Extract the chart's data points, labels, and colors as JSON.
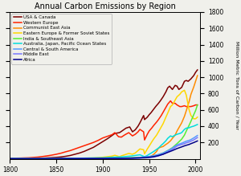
{
  "title": "Annual Carbon Emissions by Region",
  "ylabel": "Million Metric Tons of Carbon / Year",
  "xlim": [
    1800,
    2005
  ],
  "ylim": [
    0,
    1800
  ],
  "yticks": [
    200,
    400,
    600,
    800,
    1000,
    1200,
    1400,
    1600,
    1800
  ],
  "xticks": [
    1800,
    1850,
    1900,
    1950,
    2000
  ],
  "background_color": "#f0f0eb",
  "series": [
    {
      "label": "USA & Canada",
      "color": "#7B0000",
      "linewidth": 1.1,
      "years": [
        1800,
        1805,
        1810,
        1815,
        1820,
        1825,
        1830,
        1835,
        1840,
        1845,
        1850,
        1855,
        1860,
        1865,
        1870,
        1875,
        1880,
        1885,
        1890,
        1895,
        1900,
        1905,
        1910,
        1913,
        1918,
        1920,
        1925,
        1929,
        1932,
        1935,
        1938,
        1940,
        1944,
        1945,
        1948,
        1950,
        1952,
        1955,
        1957,
        1960,
        1962,
        1965,
        1968,
        1970,
        1972,
        1975,
        1978,
        1980,
        1982,
        1985,
        1988,
        1990,
        1992,
        1995,
        1998,
        2000,
        2002
      ],
      "values": [
        2,
        2.5,
        3,
        3.5,
        4,
        5,
        6,
        8,
        11,
        14,
        17,
        22,
        30,
        40,
        55,
        70,
        90,
        115,
        140,
        175,
        210,
        245,
        285,
        310,
        320,
        335,
        375,
        390,
        330,
        355,
        400,
        440,
        530,
        480,
        510,
        540,
        565,
        610,
        640,
        680,
        710,
        760,
        820,
        870,
        890,
        850,
        900,
        890,
        850,
        875,
        950,
        960,
        950,
        980,
        1020,
        1060,
        1090
      ]
    },
    {
      "label": "Western Europe",
      "color": "#FF2200",
      "linewidth": 1.1,
      "years": [
        1800,
        1805,
        1810,
        1815,
        1820,
        1825,
        1830,
        1835,
        1840,
        1845,
        1850,
        1855,
        1860,
        1865,
        1870,
        1875,
        1880,
        1885,
        1890,
        1895,
        1900,
        1905,
        1910,
        1913,
        1917,
        1920,
        1924,
        1928,
        1932,
        1935,
        1938,
        1940,
        1944,
        1945,
        1948,
        1950,
        1953,
        1955,
        1958,
        1960,
        1963,
        1965,
        1968,
        1970,
        1973,
        1975,
        1978,
        1980,
        1983,
        1985,
        1988,
        1990,
        1993,
        1995,
        1998,
        2000,
        2002
      ],
      "values": [
        6,
        7,
        8,
        10,
        12,
        16,
        20,
        27,
        35,
        44,
        55,
        68,
        85,
        100,
        120,
        140,
        160,
        180,
        200,
        225,
        255,
        275,
        295,
        320,
        270,
        265,
        295,
        320,
        280,
        300,
        330,
        360,
        330,
        230,
        300,
        340,
        380,
        410,
        450,
        480,
        530,
        570,
        630,
        670,
        710,
        680,
        680,
        660,
        640,
        640,
        650,
        640,
        640,
        640,
        650,
        660,
        660
      ]
    },
    {
      "label": "Communist East Asia",
      "color": "#FF8C00",
      "linewidth": 1.1,
      "years": [
        1800,
        1850,
        1900,
        1920,
        1930,
        1938,
        1940,
        1945,
        1948,
        1950,
        1952,
        1955,
        1958,
        1960,
        1962,
        1965,
        1968,
        1970,
        1973,
        1975,
        1978,
        1980,
        1983,
        1985,
        1988,
        1990,
        1993,
        1995,
        1998,
        2000,
        2002
      ],
      "values": [
        1,
        2,
        4,
        7,
        9,
        14,
        13,
        10,
        12,
        18,
        30,
        55,
        90,
        130,
        140,
        150,
        175,
        190,
        220,
        250,
        290,
        340,
        400,
        440,
        520,
        590,
        700,
        790,
        880,
        950,
        1020
      ]
    },
    {
      "label": "Eastern Europe & Former Soviet States",
      "color": "#FFD700",
      "linewidth": 1.1,
      "years": [
        1800,
        1850,
        1880,
        1890,
        1900,
        1910,
        1913,
        1918,
        1920,
        1924,
        1928,
        1932,
        1935,
        1938,
        1940,
        1944,
        1945,
        1948,
        1950,
        1953,
        1955,
        1958,
        1960,
        1963,
        1965,
        1968,
        1970,
        1973,
        1975,
        1978,
        1980,
        1983,
        1985,
        1988,
        1990,
        1993,
        1995,
        1998,
        2000,
        2002
      ],
      "values": [
        2,
        3,
        7,
        10,
        18,
        32,
        42,
        25,
        35,
        50,
        65,
        55,
        70,
        100,
        120,
        110,
        60,
        120,
        155,
        210,
        245,
        290,
        330,
        390,
        430,
        510,
        560,
        640,
        660,
        720,
        760,
        790,
        820,
        840,
        780,
        600,
        530,
        490,
        490,
        510
      ]
    },
    {
      "label": "India & Southeast Asia",
      "color": "#55EE33",
      "linewidth": 1.1,
      "years": [
        1800,
        1850,
        1900,
        1920,
        1930,
        1940,
        1950,
        1955,
        1960,
        1965,
        1970,
        1975,
        1980,
        1985,
        1988,
        1990,
        1993,
        1995,
        1998,
        2000,
        2002
      ],
      "values": [
        2,
        3,
        6,
        9,
        11,
        16,
        25,
        35,
        50,
        70,
        100,
        135,
        185,
        240,
        290,
        340,
        410,
        460,
        540,
        590,
        660
      ]
    },
    {
      "label": "Australia, Japan, Pacific Ocean States",
      "color": "#00DDDD",
      "linewidth": 1.1,
      "years": [
        1800,
        1850,
        1900,
        1910,
        1920,
        1930,
        1938,
        1940,
        1945,
        1948,
        1950,
        1953,
        1955,
        1958,
        1960,
        1963,
        1965,
        1968,
        1970,
        1973,
        1975,
        1978,
        1980,
        1983,
        1985,
        1988,
        1990,
        1993,
        1995,
        1998,
        2000,
        2002
      ],
      "values": [
        1,
        2,
        12,
        18,
        22,
        32,
        45,
        48,
        25,
        40,
        55,
        75,
        90,
        115,
        130,
        165,
        185,
        220,
        250,
        280,
        270,
        290,
        300,
        310,
        320,
        360,
        375,
        380,
        390,
        400,
        410,
        420
      ]
    },
    {
      "label": "Central & South America",
      "color": "#5599FF",
      "linewidth": 1.1,
      "years": [
        1800,
        1850,
        1900,
        1920,
        1930,
        1940,
        1950,
        1955,
        1960,
        1965,
        1970,
        1975,
        1980,
        1985,
        1988,
        1990,
        1993,
        1995,
        1998,
        2000,
        2002
      ],
      "values": [
        1,
        2,
        4,
        7,
        10,
        16,
        28,
        38,
        52,
        70,
        98,
        130,
        170,
        190,
        205,
        215,
        225,
        235,
        255,
        270,
        285
      ]
    },
    {
      "label": "Middle East",
      "color": "#7777FF",
      "linewidth": 1.1,
      "years": [
        1800,
        1850,
        1900,
        1920,
        1930,
        1940,
        1950,
        1955,
        1960,
        1965,
        1970,
        1975,
        1980,
        1985,
        1988,
        1990,
        1993,
        1995,
        1998,
        2000,
        2002
      ],
      "values": [
        1,
        1,
        2,
        3,
        4,
        7,
        12,
        20,
        35,
        55,
        85,
        115,
        155,
        175,
        185,
        195,
        205,
        215,
        230,
        245,
        260
      ]
    },
    {
      "label": "Africa",
      "color": "#000088",
      "linewidth": 1.1,
      "years": [
        1800,
        1850,
        1900,
        1920,
        1930,
        1940,
        1950,
        1955,
        1960,
        1965,
        1970,
        1975,
        1980,
        1985,
        1988,
        1990,
        1993,
        1995,
        1998,
        2000,
        2002
      ],
      "values": [
        1,
        1,
        3,
        4,
        6,
        10,
        18,
        26,
        38,
        55,
        78,
        100,
        125,
        145,
        158,
        165,
        175,
        185,
        198,
        208,
        218
      ]
    }
  ]
}
